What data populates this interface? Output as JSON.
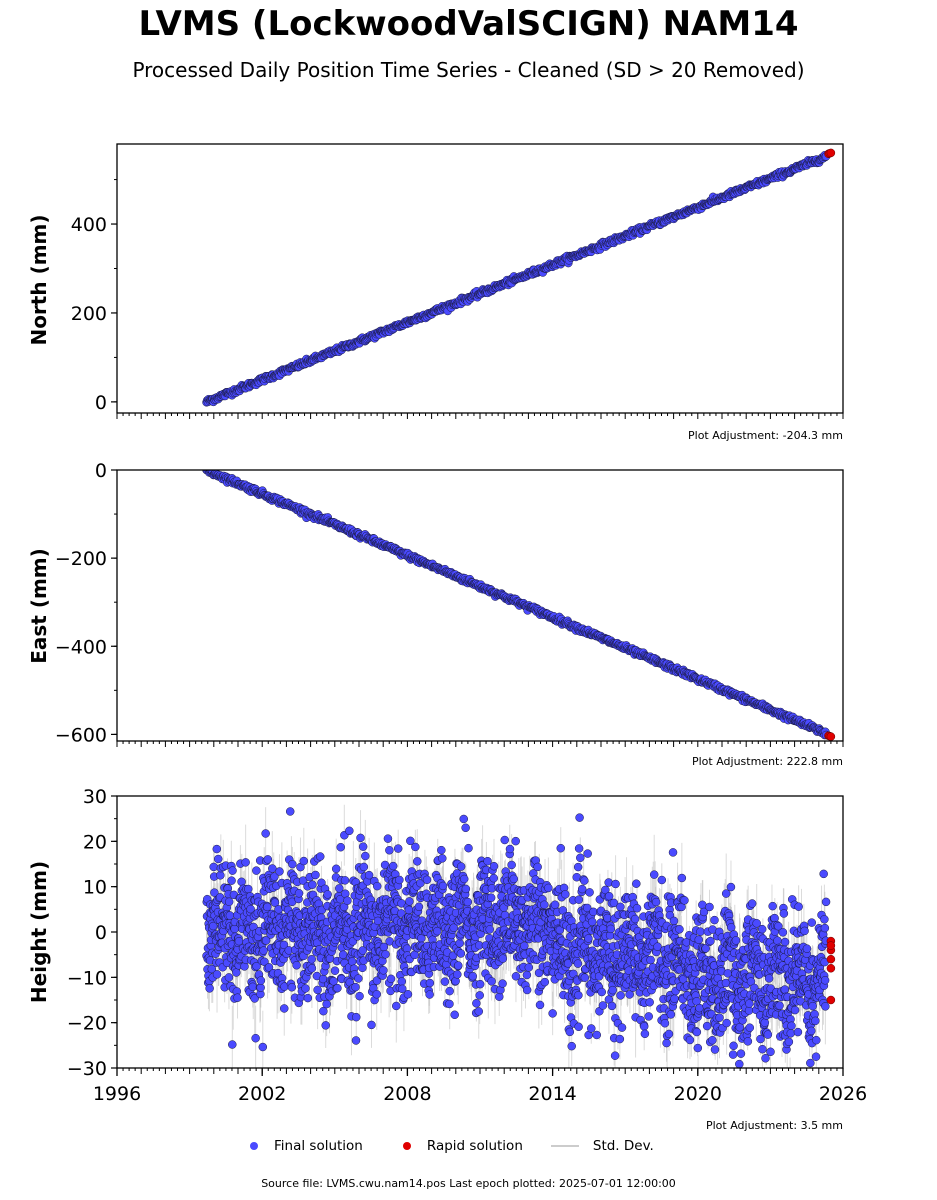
{
  "title": "LVMS (LockwoodValSCIGN) NAM14",
  "subtitle": "Processed Daily Position Time Series - Cleaned (SD > 20 Removed)",
  "colors": {
    "final": "#4a4aff",
    "rapid": "#e00000",
    "stddev": "#b0b0b0"
  },
  "legend": {
    "final": "Final solution",
    "rapid": "Rapid solution",
    "stddev": "Std. Dev."
  },
  "footer": "Source file: LVMS.cwu.nam14.pos  Last epoch plotted: 2025-07-01 12:00:00",
  "chart_data": [
    {
      "type": "scatter",
      "ylabel": "North (mm)",
      "xlim": [
        1996,
        2026
      ],
      "ylim": [
        -25,
        580
      ],
      "yticks": [
        0,
        200,
        400
      ],
      "adjustment": "Plot Adjustment: -204.3 mm",
      "series": [
        {
          "name": "Final solution",
          "kind": "linear",
          "x_start": 1999.7,
          "x_end": 2025.3,
          "y_start": 0,
          "y_end": 552,
          "noise": 3
        },
        {
          "name": "Rapid solution",
          "points": [
            [
              2025.4,
              558
            ],
            [
              2025.45,
              559
            ],
            [
              2025.5,
              560
            ]
          ]
        }
      ]
    },
    {
      "type": "scatter",
      "ylabel": "East (mm)",
      "xlim": [
        1996,
        2026
      ],
      "ylim": [
        -615,
        0
      ],
      "yticks": [
        0,
        -200,
        -400,
        -600
      ],
      "adjustment": "Plot Adjustment: 222.8 mm",
      "series": [
        {
          "name": "Final solution",
          "kind": "linear",
          "x_start": 1999.7,
          "x_end": 2025.3,
          "y_start": 0,
          "y_end": -598,
          "noise": 3
        },
        {
          "name": "Rapid solution",
          "points": [
            [
              2025.4,
              -603
            ],
            [
              2025.45,
              -604
            ],
            [
              2025.5,
              -605
            ]
          ]
        }
      ]
    },
    {
      "type": "scatter",
      "ylabel": "Height (mm)",
      "xlim": [
        1996,
        2026
      ],
      "ylim": [
        -30,
        30
      ],
      "yticks": [
        30,
        20,
        10,
        0,
        -10,
        -20,
        -30
      ],
      "xticks": [
        1996,
        2002,
        2008,
        2014,
        2020,
        2026
      ],
      "xtick_labels": [
        "1996",
        "2002",
        "2008",
        "2014",
        "2020",
        "2026"
      ],
      "adjustment": "Plot Adjustment: 3.5 mm",
      "series": [
        {
          "name": "Final solution",
          "kind": "noisy",
          "x_start": 1999.7,
          "x_end": 2025.3,
          "trend_points": [
            [
              1999.7,
              0
            ],
            [
              2013.8,
              2
            ],
            [
              2014.2,
              -4
            ],
            [
              2019,
              -5
            ],
            [
              2020,
              -10
            ],
            [
              2025.3,
              -10
            ]
          ],
          "noise": 7
        },
        {
          "name": "Rapid solution",
          "points": [
            [
              2025.5,
              -2
            ],
            [
              2025.5,
              -4
            ],
            [
              2025.5,
              -6
            ],
            [
              2025.5,
              -8
            ],
            [
              2025.5,
              -15
            ],
            [
              2025.5,
              -3
            ]
          ]
        }
      ]
    }
  ]
}
